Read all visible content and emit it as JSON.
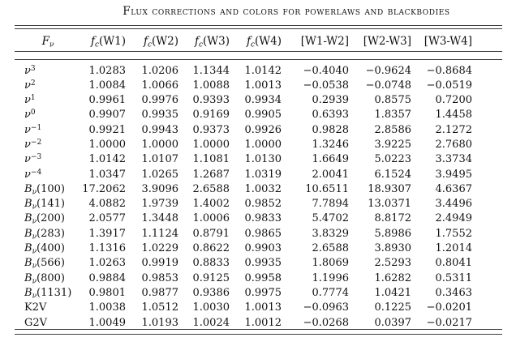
{
  "title": "Flux corrections and colors for powerlaws and blackbodies",
  "colors": {
    "text": "#111111",
    "rule": "#3d3d3d",
    "background": "#ffffff"
  },
  "table": {
    "columns": [
      {
        "it": "F",
        "sub": "ν",
        "rm": ""
      },
      {
        "it": "f",
        "sub": "c",
        "rm": "(W1)"
      },
      {
        "it": "f",
        "sub": "c",
        "rm": "(W2)"
      },
      {
        "it": "f",
        "sub": "c",
        "rm": "(W3)"
      },
      {
        "it": "f",
        "sub": "c",
        "rm": "(W4)"
      },
      {
        "rm": "[W1-W2]"
      },
      {
        "rm": "[W2-W3]"
      },
      {
        "rm": "[W3-W4]"
      }
    ],
    "rows": [
      {
        "label": {
          "it": "ν",
          "sup": "3"
        },
        "values": [
          "1.0283",
          "1.0206",
          "1.1344",
          "1.0142",
          "−0.4040",
          "−0.9624",
          "−0.8684"
        ]
      },
      {
        "label": {
          "it": "ν",
          "sup": "2"
        },
        "values": [
          "1.0084",
          "1.0066",
          "1.0088",
          "1.0013",
          "−0.0538",
          "−0.0748",
          "−0.0519"
        ]
      },
      {
        "label": {
          "it": "ν",
          "sup": "1"
        },
        "values": [
          "0.9961",
          "0.9976",
          "0.9393",
          "0.9934",
          "0.2939",
          "0.8575",
          "0.7200"
        ]
      },
      {
        "label": {
          "it": "ν",
          "sup": "0"
        },
        "values": [
          "0.9907",
          "0.9935",
          "0.9169",
          "0.9905",
          "0.6393",
          "1.8357",
          "1.4458"
        ]
      },
      {
        "label": {
          "it": "ν",
          "sup": "−1"
        },
        "values": [
          "0.9921",
          "0.9943",
          "0.9373",
          "0.9926",
          "0.9828",
          "2.8586",
          "2.1272"
        ]
      },
      {
        "label": {
          "it": "ν",
          "sup": "−2"
        },
        "values": [
          "1.0000",
          "1.0000",
          "1.0000",
          "1.0000",
          "1.3246",
          "3.9225",
          "2.7680"
        ]
      },
      {
        "label": {
          "it": "ν",
          "sup": "−3"
        },
        "values": [
          "1.0142",
          "1.0107",
          "1.1081",
          "1.0130",
          "1.6649",
          "5.0223",
          "3.3734"
        ]
      },
      {
        "label": {
          "it": "ν",
          "sup": "−4"
        },
        "values": [
          "1.0347",
          "1.0265",
          "1.2687",
          "1.0319",
          "2.0041",
          "6.1524",
          "3.9495"
        ]
      },
      {
        "label": {
          "it": "B",
          "sub": "ν",
          "rm": "(100)"
        },
        "values": [
          "17.2062",
          "3.9096",
          "2.6588",
          "1.0032",
          "10.6511",
          "18.9307",
          "4.6367"
        ]
      },
      {
        "label": {
          "it": "B",
          "sub": "ν",
          "rm": "(141)"
        },
        "values": [
          "4.0882",
          "1.9739",
          "1.4002",
          "0.9852",
          "7.7894",
          "13.0371",
          "3.4496"
        ]
      },
      {
        "label": {
          "it": "B",
          "sub": "ν",
          "rm": "(200)"
        },
        "values": [
          "2.0577",
          "1.3448",
          "1.0006",
          "0.9833",
          "5.4702",
          "8.8172",
          "2.4949"
        ]
      },
      {
        "label": {
          "it": "B",
          "sub": "ν",
          "rm": "(283)"
        },
        "values": [
          "1.3917",
          "1.1124",
          "0.8791",
          "0.9865",
          "3.8329",
          "5.8986",
          "1.7552"
        ]
      },
      {
        "label": {
          "it": "B",
          "sub": "ν",
          "rm": "(400)"
        },
        "values": [
          "1.1316",
          "1.0229",
          "0.8622",
          "0.9903",
          "2.6588",
          "3.8930",
          "1.2014"
        ]
      },
      {
        "label": {
          "it": "B",
          "sub": "ν",
          "rm": "(566)"
        },
        "values": [
          "1.0263",
          "0.9919",
          "0.8833",
          "0.9935",
          "1.8069",
          "2.5293",
          "0.8041"
        ]
      },
      {
        "label": {
          "it": "B",
          "sub": "ν",
          "rm": "(800)"
        },
        "values": [
          "0.9884",
          "0.9853",
          "0.9125",
          "0.9958",
          "1.1996",
          "1.6282",
          "0.5311"
        ]
      },
      {
        "label": {
          "it": "B",
          "sub": "ν",
          "rm": "(1131)"
        },
        "values": [
          "0.9801",
          "0.9877",
          "0.9386",
          "0.9975",
          "0.7774",
          "1.0421",
          "0.3463"
        ]
      },
      {
        "label": {
          "rm": "K2V"
        },
        "values": [
          "1.0038",
          "1.0512",
          "1.0030",
          "1.0013",
          "−0.0963",
          "0.1225",
          "−0.0201"
        ]
      },
      {
        "label": {
          "rm": "G2V"
        },
        "values": [
          "1.0049",
          "1.0193",
          "1.0024",
          "1.0012",
          "−0.0268",
          "0.0397",
          "−0.0217"
        ]
      }
    ]
  }
}
